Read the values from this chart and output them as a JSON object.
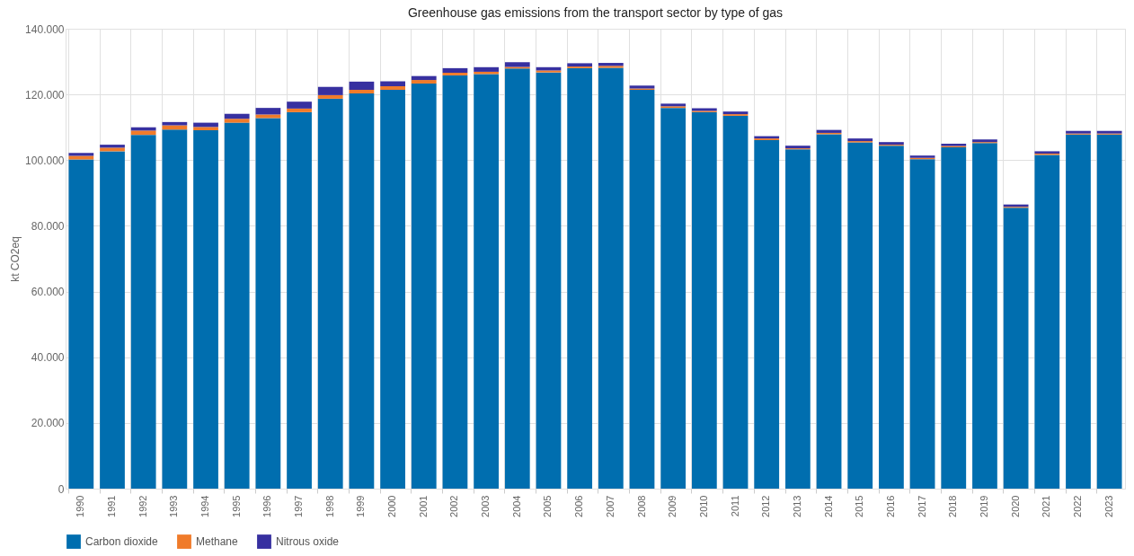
{
  "chart_data": {
    "type": "bar",
    "title": "Greenhouse gas emissions from the transport sector by type of gas",
    "ylabel": "kt CO2eq",
    "stacked": true,
    "grid": true,
    "legend": "bottom",
    "categories": [
      "1990",
      "1991",
      "1992",
      "1993",
      "1994",
      "1995",
      "1996",
      "1997",
      "1998",
      "1999",
      "2000",
      "2001",
      "2002",
      "2003",
      "2004",
      "2005",
      "2006",
      "2007",
      "2008",
      "2009",
      "2010",
      "2011",
      "2012",
      "2013",
      "2014",
      "2015",
      "2016",
      "2017",
      "2018",
      "2019",
      "2020",
      "2021",
      "2022",
      "2023"
    ],
    "ylim": [
      0,
      140000
    ],
    "yticks": [
      0,
      {
        "value": 20000,
        "label": "20.000"
      },
      {
        "value": 40000,
        "label": "40.000"
      },
      {
        "value": 60000,
        "label": "60.000"
      },
      {
        "value": 80000,
        "label": "80.000"
      },
      {
        "value": 100000,
        "label": "100.000"
      },
      {
        "value": 120000,
        "label": "120.000"
      },
      {
        "value": 140000,
        "label": "140.000"
      }
    ],
    "series": [
      {
        "name": "Carbon dioxide",
        "color": "#006eaf",
        "values": [
          100200,
          102700,
          107700,
          109300,
          109100,
          111400,
          112800,
          114600,
          118700,
          120300,
          121400,
          123300,
          125800,
          126200,
          127900,
          126700,
          128000,
          128100,
          121400,
          115900,
          114600,
          113500,
          106100,
          103300,
          107900,
          105400,
          104400,
          100300,
          103900,
          105200,
          85500,
          101600,
          107800,
          107800
        ]
      },
      {
        "name": "Methane",
        "color": "#f07b2a",
        "values": [
          1100,
          1100,
          1300,
          1300,
          1000,
          1200,
          1100,
          1100,
          1100,
          1100,
          1100,
          1100,
          800,
          700,
          500,
          600,
          500,
          600,
          400,
          500,
          400,
          500,
          500,
          300,
          400,
          400,
          300,
          400,
          400,
          300,
          300,
          400,
          300,
          300
        ]
      },
      {
        "name": "Nitrous oxide",
        "color": "#3730a0",
        "values": [
          900,
          900,
          1000,
          1000,
          1300,
          1500,
          2000,
          2100,
          2500,
          2500,
          1500,
          1200,
          1400,
          1400,
          1400,
          1000,
          1000,
          900,
          900,
          800,
          800,
          800,
          700,
          800,
          900,
          800,
          800,
          700,
          700,
          800,
          700,
          700,
          800,
          800
        ]
      }
    ]
  }
}
